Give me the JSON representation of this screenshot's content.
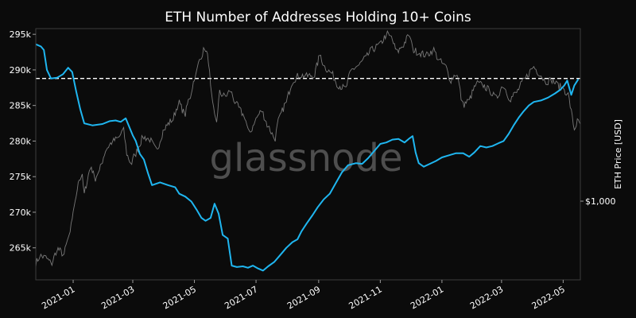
{
  "chart_data": {
    "type": "line",
    "title": "ETH Number of Addresses Holding 10+ Coins",
    "watermark": "glassnode",
    "y_left": {
      "ticks": [
        {
          "value": 265000,
          "label": "265k"
        },
        {
          "value": 270000,
          "label": "270k"
        },
        {
          "value": 275000,
          "label": "275k"
        },
        {
          "value": 280000,
          "label": "280k"
        },
        {
          "value": 285000,
          "label": "285k"
        },
        {
          "value": 290000,
          "label": "290k"
        },
        {
          "value": 295000,
          "label": "295k"
        }
      ],
      "range": [
        260500,
        295800
      ]
    },
    "y_right": {
      "label": "ETH Price [USD]",
      "tick_label": "$1,000",
      "scale": "log"
    },
    "x": {
      "range": [
        "2020-11-25",
        "2022-05-18"
      ],
      "ticks": [
        {
          "date": "2021-01-01",
          "label": "2021-01"
        },
        {
          "date": "2021-03-01",
          "label": "2021-03"
        },
        {
          "date": "2021-05-01",
          "label": "2021-05"
        },
        {
          "date": "2021-07-01",
          "label": "2021-07"
        },
        {
          "date": "2021-09-01",
          "label": "2021-09"
        },
        {
          "date": "2021-11-01",
          "label": "2021-11"
        },
        {
          "date": "2022-01-01",
          "label": "2022-01"
        },
        {
          "date": "2022-03-01",
          "label": "2022-03"
        },
        {
          "date": "2022-05-01",
          "label": "2022-05"
        }
      ]
    },
    "reference_line": {
      "value": 288800,
      "style": "dashed",
      "color": "#ffffff"
    },
    "grid": false,
    "series": [
      {
        "axis": "left",
        "color": "#1fb6f0",
        "points": [
          [
            "2020-11-25",
            293600
          ],
          [
            "2020-11-30",
            293300
          ],
          [
            "2020-12-03",
            292800
          ],
          [
            "2020-12-06",
            290000
          ],
          [
            "2020-12-10",
            288800
          ],
          [
            "2020-12-16",
            288900
          ],
          [
            "2020-12-22",
            289400
          ],
          [
            "2020-12-27",
            290300
          ],
          [
            "2020-12-31",
            289700
          ],
          [
            "2021-01-04",
            287000
          ],
          [
            "2021-01-08",
            284500
          ],
          [
            "2021-01-12",
            282500
          ],
          [
            "2021-01-20",
            282200
          ],
          [
            "2021-01-30",
            282400
          ],
          [
            "2021-02-06",
            282800
          ],
          [
            "2021-02-12",
            282900
          ],
          [
            "2021-02-17",
            282700
          ],
          [
            "2021-02-22",
            283200
          ],
          [
            "2021-03-01",
            280800
          ],
          [
            "2021-03-04",
            280000
          ],
          [
            "2021-03-08",
            278200
          ],
          [
            "2021-03-12",
            277400
          ],
          [
            "2021-03-16",
            275500
          ],
          [
            "2021-03-20",
            273800
          ],
          [
            "2021-03-28",
            274200
          ],
          [
            "2021-04-05",
            273800
          ],
          [
            "2021-04-12",
            273500
          ],
          [
            "2021-04-16",
            272600
          ],
          [
            "2021-04-22",
            272200
          ],
          [
            "2021-04-28",
            271500
          ],
          [
            "2021-05-03",
            270400
          ],
          [
            "2021-05-08",
            269200
          ],
          [
            "2021-05-12",
            268800
          ],
          [
            "2021-05-17",
            269200
          ],
          [
            "2021-05-21",
            271200
          ],
          [
            "2021-05-25",
            269800
          ],
          [
            "2021-05-29",
            266800
          ],
          [
            "2021-06-03",
            266300
          ],
          [
            "2021-06-07",
            262500
          ],
          [
            "2021-06-12",
            262300
          ],
          [
            "2021-06-18",
            262400
          ],
          [
            "2021-06-23",
            262200
          ],
          [
            "2021-06-28",
            262500
          ],
          [
            "2021-07-03",
            262100
          ],
          [
            "2021-07-08",
            261800
          ],
          [
            "2021-07-13",
            262400
          ],
          [
            "2021-07-19",
            263000
          ],
          [
            "2021-07-25",
            264000
          ],
          [
            "2021-07-31",
            265000
          ],
          [
            "2021-08-06",
            265800
          ],
          [
            "2021-08-11",
            266200
          ],
          [
            "2021-08-15",
            267300
          ],
          [
            "2021-08-20",
            268400
          ],
          [
            "2021-08-26",
            269600
          ],
          [
            "2021-08-31",
            270700
          ],
          [
            "2021-09-06",
            271800
          ],
          [
            "2021-09-12",
            272600
          ],
          [
            "2021-09-18",
            274100
          ],
          [
            "2021-09-24",
            275600
          ],
          [
            "2021-09-30",
            276600
          ],
          [
            "2021-10-08",
            276900
          ],
          [
            "2021-10-14",
            276800
          ],
          [
            "2021-10-20",
            277600
          ],
          [
            "2021-10-26",
            278600
          ],
          [
            "2021-11-01",
            279600
          ],
          [
            "2021-11-07",
            279800
          ],
          [
            "2021-11-13",
            280200
          ],
          [
            "2021-11-19",
            280300
          ],
          [
            "2021-11-25",
            279800
          ],
          [
            "2021-11-30",
            280400
          ],
          [
            "2021-12-03",
            280700
          ],
          [
            "2021-12-06",
            278400
          ],
          [
            "2021-12-09",
            276900
          ],
          [
            "2021-12-14",
            276400
          ],
          [
            "2021-12-20",
            276800
          ],
          [
            "2021-12-26",
            277200
          ],
          [
            "2022-01-01",
            277700
          ],
          [
            "2022-01-08",
            278000
          ],
          [
            "2022-01-15",
            278300
          ],
          [
            "2022-01-22",
            278300
          ],
          [
            "2022-01-28",
            277800
          ],
          [
            "2022-02-02",
            278400
          ],
          [
            "2022-02-08",
            279300
          ],
          [
            "2022-02-14",
            279100
          ],
          [
            "2022-02-20",
            279300
          ],
          [
            "2022-02-26",
            279700
          ],
          [
            "2022-03-03",
            280000
          ],
          [
            "2022-03-08",
            281000
          ],
          [
            "2022-03-13",
            282200
          ],
          [
            "2022-03-18",
            283300
          ],
          [
            "2022-03-23",
            284200
          ],
          [
            "2022-03-28",
            285000
          ],
          [
            "2022-04-02",
            285500
          ],
          [
            "2022-04-09",
            285700
          ],
          [
            "2022-04-16",
            286100
          ],
          [
            "2022-04-23",
            286700
          ],
          [
            "2022-04-28",
            287200
          ],
          [
            "2022-05-02",
            287800
          ],
          [
            "2022-05-05",
            288500
          ],
          [
            "2022-05-09",
            286500
          ],
          [
            "2022-05-12",
            287800
          ],
          [
            "2022-05-16",
            288700
          ]
        ]
      },
      {
        "axis": "right",
        "color": "#8c8c8c",
        "points": [
          [
            "2020-11-25",
            560
          ],
          [
            "2020-11-30",
            600
          ],
          [
            "2020-12-05",
            590
          ],
          [
            "2020-12-11",
            560
          ],
          [
            "2020-12-17",
            640
          ],
          [
            "2020-12-23",
            610
          ],
          [
            "2020-12-29",
            730
          ],
          [
            "2021-01-03",
            980
          ],
          [
            "2021-01-06",
            1210
          ],
          [
            "2021-01-10",
            1250
          ],
          [
            "2021-01-12",
            1060
          ],
          [
            "2021-01-19",
            1380
          ],
          [
            "2021-01-23",
            1240
          ],
          [
            "2021-01-27",
            1320
          ],
          [
            "2021-02-04",
            1650
          ],
          [
            "2021-02-10",
            1750
          ],
          [
            "2021-02-15",
            1800
          ],
          [
            "2021-02-20",
            1930
          ],
          [
            "2021-02-23",
            1560
          ],
          [
            "2021-02-28",
            1420
          ],
          [
            "2021-03-04",
            1560
          ],
          [
            "2021-03-12",
            1820
          ],
          [
            "2021-03-18",
            1780
          ],
          [
            "2021-03-25",
            1600
          ],
          [
            "2021-04-02",
            1980
          ],
          [
            "2021-04-10",
            2150
          ],
          [
            "2021-04-16",
            2500
          ],
          [
            "2021-04-22",
            2250
          ],
          [
            "2021-04-27",
            2650
          ],
          [
            "2021-05-03",
            3300
          ],
          [
            "2021-05-08",
            3900
          ],
          [
            "2021-05-12",
            4150
          ],
          [
            "2021-05-15",
            3700
          ],
          [
            "2021-05-19",
            2450
          ],
          [
            "2021-05-23",
            2100
          ],
          [
            "2021-05-26",
            2750
          ],
          [
            "2021-06-01",
            2650
          ],
          [
            "2021-06-06",
            2800
          ],
          [
            "2021-06-12",
            2450
          ],
          [
            "2021-06-20",
            2200
          ],
          [
            "2021-06-25",
            1850
          ],
          [
            "2021-07-01",
            2150
          ],
          [
            "2021-07-07",
            2320
          ],
          [
            "2021-07-14",
            1980
          ],
          [
            "2021-07-20",
            1800
          ],
          [
            "2021-07-25",
            2200
          ],
          [
            "2021-07-31",
            2500
          ],
          [
            "2021-08-07",
            3100
          ],
          [
            "2021-08-14",
            3250
          ],
          [
            "2021-08-20",
            3200
          ],
          [
            "2021-08-28",
            3250
          ],
          [
            "2021-09-03",
            3900
          ],
          [
            "2021-09-07",
            3500
          ],
          [
            "2021-09-14",
            3300
          ],
          [
            "2021-09-21",
            2950
          ],
          [
            "2021-09-28",
            2850
          ],
          [
            "2021-10-04",
            3400
          ],
          [
            "2021-10-11",
            3550
          ],
          [
            "2021-10-18",
            3800
          ],
          [
            "2021-10-24",
            4100
          ],
          [
            "2021-11-01",
            4300
          ],
          [
            "2021-11-08",
            4750
          ],
          [
            "2021-11-12",
            4600
          ],
          [
            "2021-11-18",
            4000
          ],
          [
            "2021-11-24",
            4300
          ],
          [
            "2021-11-30",
            4700
          ],
          [
            "2021-12-04",
            4100
          ],
          [
            "2021-12-10",
            4000
          ],
          [
            "2021-12-17",
            3900
          ],
          [
            "2021-12-24",
            4100
          ],
          [
            "2021-12-30",
            3700
          ],
          [
            "2022-01-05",
            3500
          ],
          [
            "2022-01-10",
            3100
          ],
          [
            "2022-01-16",
            3300
          ],
          [
            "2022-01-22",
            2450
          ],
          [
            "2022-01-28",
            2550
          ],
          [
            "2022-02-05",
            3000
          ],
          [
            "2022-02-11",
            2950
          ],
          [
            "2022-02-18",
            2800
          ],
          [
            "2022-02-24",
            2600
          ],
          [
            "2022-03-03",
            2950
          ],
          [
            "2022-03-10",
            2600
          ],
          [
            "2022-03-16",
            2750
          ],
          [
            "2022-03-24",
            3100
          ],
          [
            "2022-04-02",
            3500
          ],
          [
            "2022-04-08",
            3300
          ],
          [
            "2022-04-14",
            3050
          ],
          [
            "2022-04-20",
            3100
          ],
          [
            "2022-04-26",
            2950
          ],
          [
            "2022-05-02",
            2850
          ],
          [
            "2022-05-06",
            2700
          ],
          [
            "2022-05-09",
            2300
          ],
          [
            "2022-05-12",
            1950
          ],
          [
            "2022-05-15",
            2100
          ],
          [
            "2022-05-18",
            2050
          ]
        ]
      }
    ]
  }
}
